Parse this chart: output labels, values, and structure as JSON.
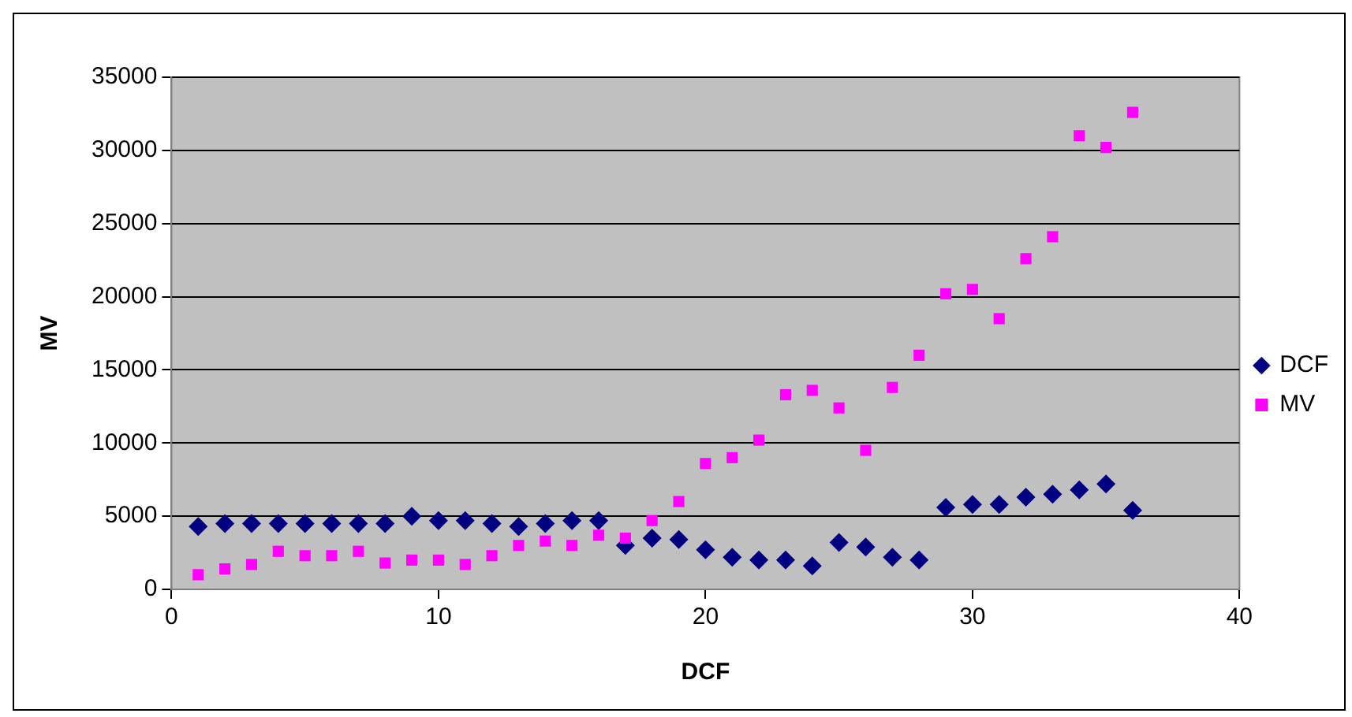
{
  "chart_data": {
    "type": "scatter",
    "xlabel": "DCF",
    "ylabel": "MV",
    "x": [
      1,
      2,
      3,
      4,
      5,
      6,
      7,
      8,
      9,
      10,
      11,
      12,
      13,
      14,
      15,
      16,
      17,
      18,
      19,
      20,
      21,
      22,
      23,
      24,
      25,
      26,
      27,
      28,
      29,
      30,
      31,
      32,
      33,
      34,
      35,
      36
    ],
    "series": [
      {
        "name": "DCF",
        "color": "#000080",
        "marker": "diamond",
        "values": [
          4300,
          4500,
          4500,
          4500,
          4500,
          4500,
          4500,
          4500,
          5000,
          4700,
          4700,
          4500,
          4300,
          4500,
          4700,
          4700,
          3000,
          3500,
          3400,
          2700,
          2200,
          2000,
          2000,
          1600,
          3200,
          2900,
          2200,
          2000,
          5600,
          5800,
          5800,
          6300,
          6500,
          6800,
          7200,
          5400
        ]
      },
      {
        "name": "MV",
        "color": "#ff00ff",
        "marker": "square",
        "values": [
          1000,
          1400,
          1700,
          2600,
          2300,
          2300,
          2600,
          1800,
          2000,
          2000,
          1700,
          2300,
          3000,
          3300,
          3000,
          3700,
          3500,
          4700,
          6000,
          8600,
          9000,
          10200,
          13300,
          13600,
          12400,
          9500,
          13800,
          16000,
          20200,
          20500,
          18500,
          22600,
          24100,
          31000,
          30200,
          32600
        ]
      }
    ],
    "xlim": [
      0,
      40
    ],
    "xticks": [
      0,
      10,
      20,
      30,
      40
    ],
    "ylim": [
      0,
      35000
    ],
    "yticks": [
      0,
      5000,
      10000,
      15000,
      20000,
      25000,
      30000,
      35000
    ],
    "grid": "y",
    "legend": "right"
  }
}
